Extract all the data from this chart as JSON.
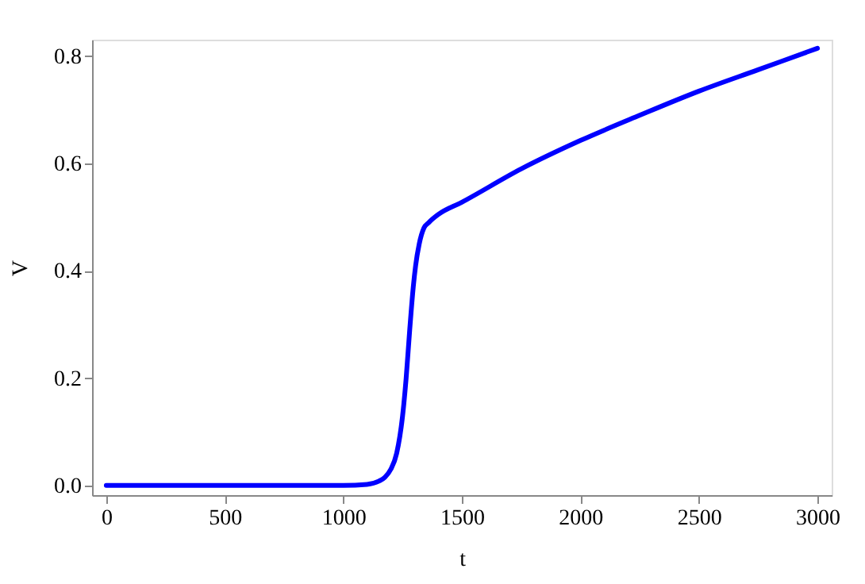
{
  "chart_data": {
    "type": "line",
    "xlabel": "t",
    "ylabel": "V",
    "x": [
      0,
      500,
      1000,
      1100,
      1150,
      1175,
      1200,
      1225,
      1250,
      1265,
      1280,
      1295,
      1305,
      1320,
      1340,
      1360,
      1400,
      1500,
      1750,
      2000,
      2250,
      2500,
      2750,
      3000
    ],
    "series": [
      {
        "color": "#0000ff",
        "values": [
          0,
          0,
          0,
          0.002,
          0.008,
          0.015,
          0.03,
          0.06,
          0.13,
          0.2,
          0.29,
          0.37,
          0.41,
          0.45,
          0.48,
          0.49,
          0.505,
          0.528,
          0.59,
          0.643,
          0.69,
          0.735,
          0.775,
          0.815
        ]
      }
    ],
    "xlim": [
      -60,
      3060
    ],
    "ylim": [
      -0.018,
      0.831
    ],
    "xticks": [
      0,
      500,
      1000,
      1500,
      2000,
      2500,
      3000
    ],
    "yticks": [
      {
        "value": 0,
        "label": "0.0"
      },
      0.2,
      0.4,
      0.6,
      0.8
    ],
    "grid": false,
    "marker": "none",
    "line_style": "solid"
  }
}
